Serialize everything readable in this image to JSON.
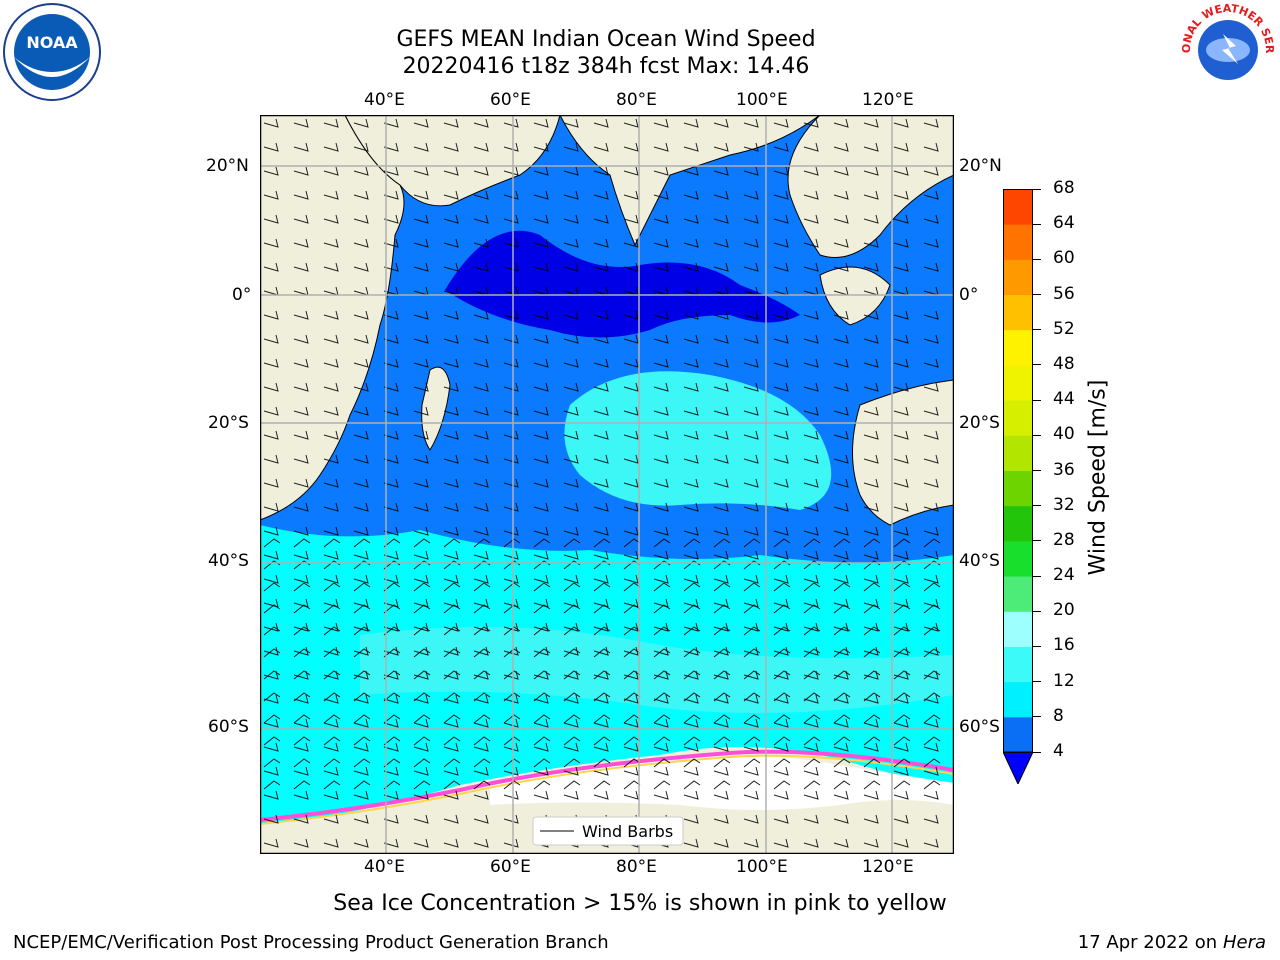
{
  "title": {
    "line1": "GEFS MEAN Indian Ocean Wind Speed",
    "line2": "20220416 t18z 384h fcst   Max: 14.46"
  },
  "logos": {
    "left": {
      "text": "NOAA",
      "icon": "noaa-logo"
    },
    "right": {
      "text": "NATIONAL WEATHER SERVICE",
      "icon": "nws-logo"
    }
  },
  "map": {
    "lon_ticks_top": [
      "40°E",
      "60°E",
      "80°E",
      "100°E",
      "120°E"
    ],
    "lon_ticks_bottom": [
      "40°E",
      "60°E",
      "80°E",
      "100°E",
      "120°E"
    ],
    "lat_ticks_left": [
      "20°N",
      "0°",
      "20°S",
      "40°S",
      "60°S"
    ],
    "lat_ticks_right": [
      "20°N",
      "0°",
      "20°S",
      "40°S",
      "60°S"
    ],
    "legend_label": "Wind Barbs",
    "colors": {
      "land": "#efefdc",
      "sea_ice": "#ffffff",
      "band_4_8": "#0b7aff",
      "band_below_4": "#0000e6",
      "band_8_12": "#00ffff",
      "band_12_16": "#3cf7f5"
    }
  },
  "colorbar": {
    "label": "Wind Speed [m/s]",
    "ticks": [
      "4",
      "8",
      "12",
      "16",
      "20",
      "24",
      "28",
      "32",
      "36",
      "40",
      "44",
      "48",
      "52",
      "56",
      "60",
      "64",
      "68"
    ],
    "colors": [
      "#0b6ff5",
      "#00f0ff",
      "#3cfaf8",
      "#9effff",
      "#4dec79",
      "#17df2c",
      "#23c50b",
      "#6ed400",
      "#b2e600",
      "#d6ee00",
      "#f0f300",
      "#fff200",
      "#ffc000",
      "#ff9900",
      "#ff7300",
      "#ff4600",
      "#ff1500"
    ],
    "under_color": "#0000ff"
  },
  "sea_ice_note": "Sea Ice Concentration > 15% is shown in pink to yellow",
  "footer": {
    "left": "NCEP/EMC/Verification Post Processing Product Generation Branch",
    "right_date": "17 Apr 2022 on",
    "right_host": "Hera"
  }
}
